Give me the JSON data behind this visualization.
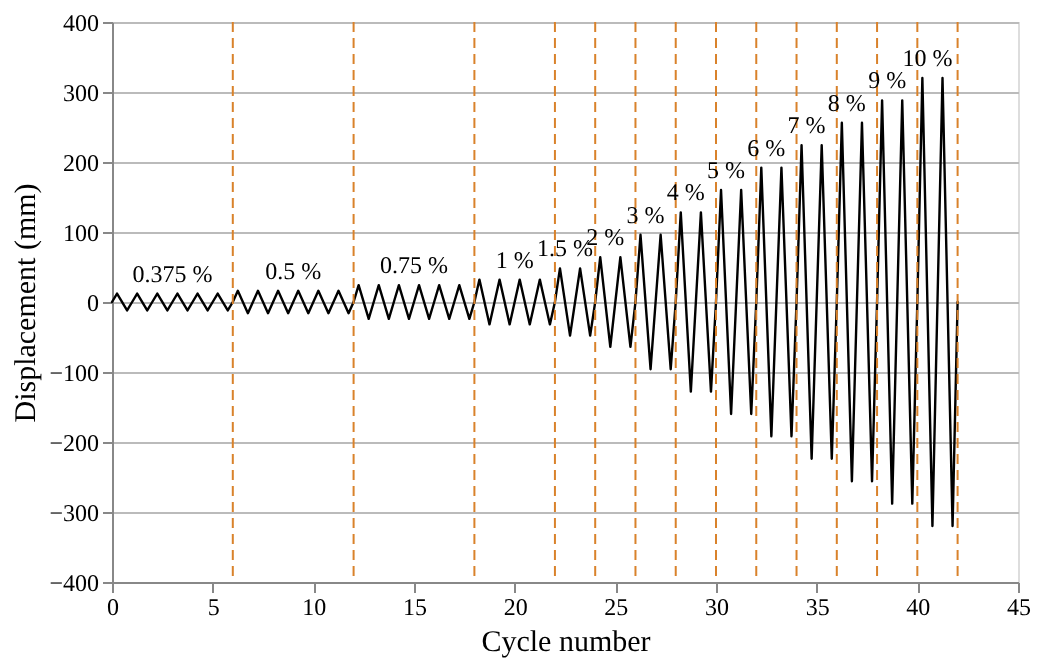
{
  "chart_data": {
    "type": "line",
    "xlabel": "Cycle number",
    "ylabel": "Displacement (mm)",
    "xlim": [
      0,
      45
    ],
    "xticks": [
      0,
      5,
      10,
      15,
      20,
      25,
      30,
      35,
      40,
      45
    ],
    "ylim": [
      -400,
      400
    ],
    "yticks": [
      -400,
      -300,
      -200,
      -100,
      0,
      100,
      200,
      300,
      400
    ],
    "grid": "y",
    "marker": "none",
    "line_style": "solid",
    "series": [
      {
        "color": "#000000",
        "x": [
          0,
          0.25,
          0.75,
          1,
          1.25,
          1.75,
          2,
          2.25,
          2.75,
          3,
          3.25,
          3.75,
          4,
          4.25,
          4.75,
          5,
          5.25,
          5.75,
          6,
          6.25,
          6.75,
          7,
          7.25,
          7.75,
          8,
          8.25,
          8.75,
          9,
          9.25,
          9.75,
          10,
          10.25,
          10.75,
          11,
          11.25,
          11.75,
          12,
          12.25,
          12.75,
          13,
          13.25,
          13.75,
          14,
          14.25,
          14.75,
          15,
          15.25,
          15.75,
          16,
          16.25,
          16.75,
          17,
          17.25,
          17.75,
          18,
          18.25,
          18.75,
          19,
          19.25,
          19.75,
          20,
          20.25,
          20.75,
          21,
          21.25,
          21.75,
          22,
          22.25,
          22.75,
          23,
          23.25,
          23.75,
          24,
          24.25,
          24.75,
          25,
          25.25,
          25.75,
          26,
          26.25,
          26.75,
          27,
          27.25,
          27.75,
          28,
          28.25,
          28.75,
          29,
          29.25,
          29.75,
          30,
          30.25,
          30.75,
          31,
          31.25,
          31.75,
          32,
          32.25,
          32.75,
          33,
          33.25,
          33.75,
          34,
          34.25,
          34.75,
          35,
          35.25,
          35.75,
          36,
          36.25,
          36.75,
          37,
          37.25,
          37.75,
          38,
          38.25,
          38.75,
          39,
          39.25,
          39.75,
          40,
          40.25,
          40.75,
          41,
          41.25,
          41.75,
          42
        ],
        "values": [
          0,
          12,
          -12,
          0,
          12,
          -12,
          0,
          12,
          -12,
          0,
          12,
          -12,
          0,
          12,
          -12,
          0,
          12,
          -12,
          0,
          16,
          -16,
          0,
          16,
          -16,
          0,
          16,
          -16,
          0,
          16,
          -16,
          0,
          16,
          -16,
          0,
          16,
          -16,
          0,
          24,
          -24,
          0,
          24,
          -24,
          0,
          24,
          -24,
          0,
          24,
          -24,
          0,
          24,
          -24,
          0,
          24,
          -24,
          0,
          32,
          -32,
          0,
          32,
          -32,
          0,
          32,
          -32,
          0,
          32,
          -32,
          0,
          48,
          -48,
          0,
          48,
          -48,
          0,
          64,
          -64,
          0,
          64,
          -64,
          0,
          96,
          -96,
          0,
          96,
          -96,
          0,
          128,
          -128,
          0,
          128,
          -128,
          0,
          160,
          -160,
          0,
          160,
          -160,
          0,
          192,
          -192,
          0,
          192,
          -192,
          0,
          224,
          -224,
          0,
          224,
          -224,
          0,
          256,
          -256,
          0,
          256,
          -256,
          0,
          288,
          -288,
          0,
          288,
          -288,
          0,
          320,
          -320,
          0,
          320,
          -320,
          0
        ]
      }
    ],
    "ref_lines": [
      {
        "axis": "x",
        "value": 6,
        "color": "#d9822b",
        "line_style": "dashed"
      },
      {
        "axis": "x",
        "value": 12,
        "color": "#d9822b",
        "line_style": "dashed"
      },
      {
        "axis": "x",
        "value": 18,
        "color": "#d9822b",
        "line_style": "dashed"
      },
      {
        "axis": "x",
        "value": 22,
        "color": "#d9822b",
        "line_style": "dashed"
      },
      {
        "axis": "x",
        "value": 24,
        "color": "#d9822b",
        "line_style": "dashed"
      },
      {
        "axis": "x",
        "value": 26,
        "color": "#d9822b",
        "line_style": "dashed"
      },
      {
        "axis": "x",
        "value": 28,
        "color": "#d9822b",
        "line_style": "dashed"
      },
      {
        "axis": "x",
        "value": 30,
        "color": "#d9822b",
        "line_style": "dashed"
      },
      {
        "axis": "x",
        "value": 32,
        "color": "#d9822b",
        "line_style": "dashed"
      },
      {
        "axis": "x",
        "value": 34,
        "color": "#d9822b",
        "line_style": "dashed"
      },
      {
        "axis": "x",
        "value": 36,
        "color": "#d9822b",
        "line_style": "dashed"
      },
      {
        "axis": "x",
        "value": 38,
        "color": "#d9822b",
        "line_style": "dashed"
      },
      {
        "axis": "x",
        "value": 40,
        "color": "#d9822b",
        "line_style": "dashed"
      },
      {
        "axis": "x",
        "value": 42,
        "color": "#d9822b",
        "line_style": "dashed"
      }
    ],
    "annotations": [
      "0.375 %",
      "0.5 %",
      "0.75 %",
      "1 %",
      "1.5 %",
      "2 %",
      "3 %",
      "4 %",
      "5 %",
      "6 %",
      "7 %",
      "8 %",
      "9 %",
      "10 %"
    ]
  }
}
